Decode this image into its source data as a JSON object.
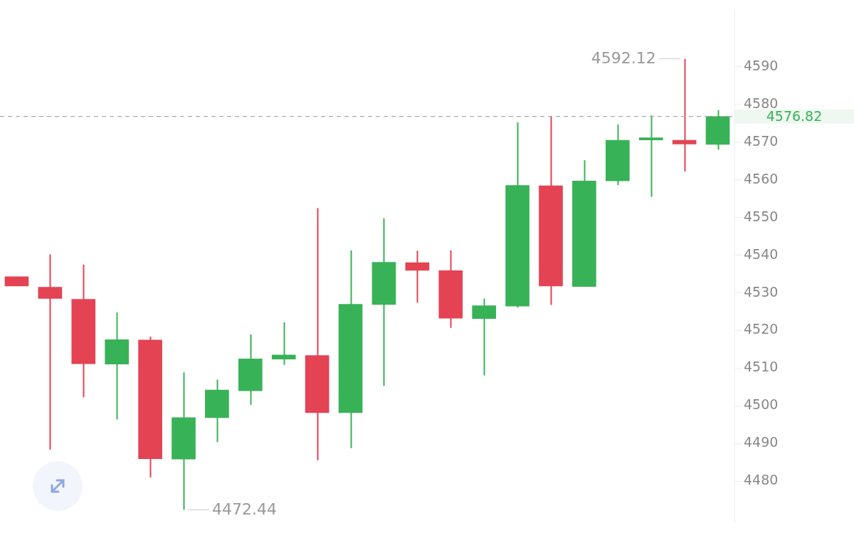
{
  "chart_data": {
    "type": "candlestick",
    "categories": [
      null,
      null,
      null,
      null,
      null,
      null,
      null,
      null,
      null,
      null,
      null,
      null,
      null,
      null,
      null,
      null,
      null,
      null,
      null,
      null,
      null,
      null
    ],
    "ohlc": [
      [
        4534.3,
        4534.3,
        4531.8,
        4531.8
      ],
      [
        4531.5,
        4540.2,
        4488.4,
        4528.5
      ],
      [
        4528.3,
        4537.5,
        4502.3,
        4511.2
      ],
      [
        4511.1,
        4524.8,
        4496.4,
        4517.6
      ],
      [
        4517.5,
        4518.4,
        4481.0,
        4486.0
      ],
      [
        4485.9,
        4508.9,
        4472.44,
        4496.9
      ],
      [
        4496.9,
        4507.0,
        4490.4,
        4504.2
      ],
      [
        4504.0,
        4519.0,
        4500.3,
        4512.5
      ],
      [
        4512.4,
        4522.2,
        4510.9,
        4513.5
      ],
      [
        4513.4,
        4552.5,
        4485.6,
        4498.2
      ],
      [
        4498.2,
        4541.3,
        4488.8,
        4527.0
      ],
      [
        4526.9,
        4549.8,
        4505.3,
        4538.1
      ],
      [
        4538.0,
        4541.2,
        4527.4,
        4536.0
      ],
      [
        4535.9,
        4541.3,
        4520.7,
        4523.3
      ],
      [
        4523.2,
        4528.5,
        4508.1,
        4526.6
      ],
      [
        4526.5,
        4575.3,
        4526.1,
        4558.5
      ],
      [
        4558.4,
        4576.8,
        4526.8,
        4531.8
      ],
      [
        4531.7,
        4565.2,
        4531.7,
        4559.7
      ],
      [
        4559.7,
        4574.7,
        4558.6,
        4570.5
      ],
      [
        4570.6,
        4577.1,
        4555.5,
        4570.7
      ],
      [
        4570.5,
        4592.12,
        4562.2,
        4569.5
      ],
      [
        4569.4,
        4578.5,
        4568.0,
        4576.82
      ]
    ],
    "colors": [
      "#e34352",
      "#e34352",
      "#e34352",
      "#38b257",
      "#e34352",
      "#38b257",
      "#38b257",
      "#38b257",
      "#38b257",
      "#e34352",
      "#38b257",
      "#38b257",
      "#e34352",
      "#e34352",
      "#38b257",
      "#38b257",
      "#e34352",
      "#38b257",
      "#38b257",
      "#38b257",
      "#e34352",
      "#38b257"
    ],
    "ylim": [
      4469,
      4605
    ],
    "yticks": [
      4480,
      4490,
      4500,
      4510,
      4520,
      4530,
      4540,
      4550,
      4560,
      4570,
      4580,
      4590
    ],
    "ref_lines": [
      {
        "axis": "y",
        "value": 4576.82,
        "label": "4576.82",
        "color": "#aaaaaa",
        "line_style": "dashed"
      }
    ],
    "annotations": [
      "4592.12",
      "4472.44"
    ],
    "grid": false,
    "legend": false
  }
}
